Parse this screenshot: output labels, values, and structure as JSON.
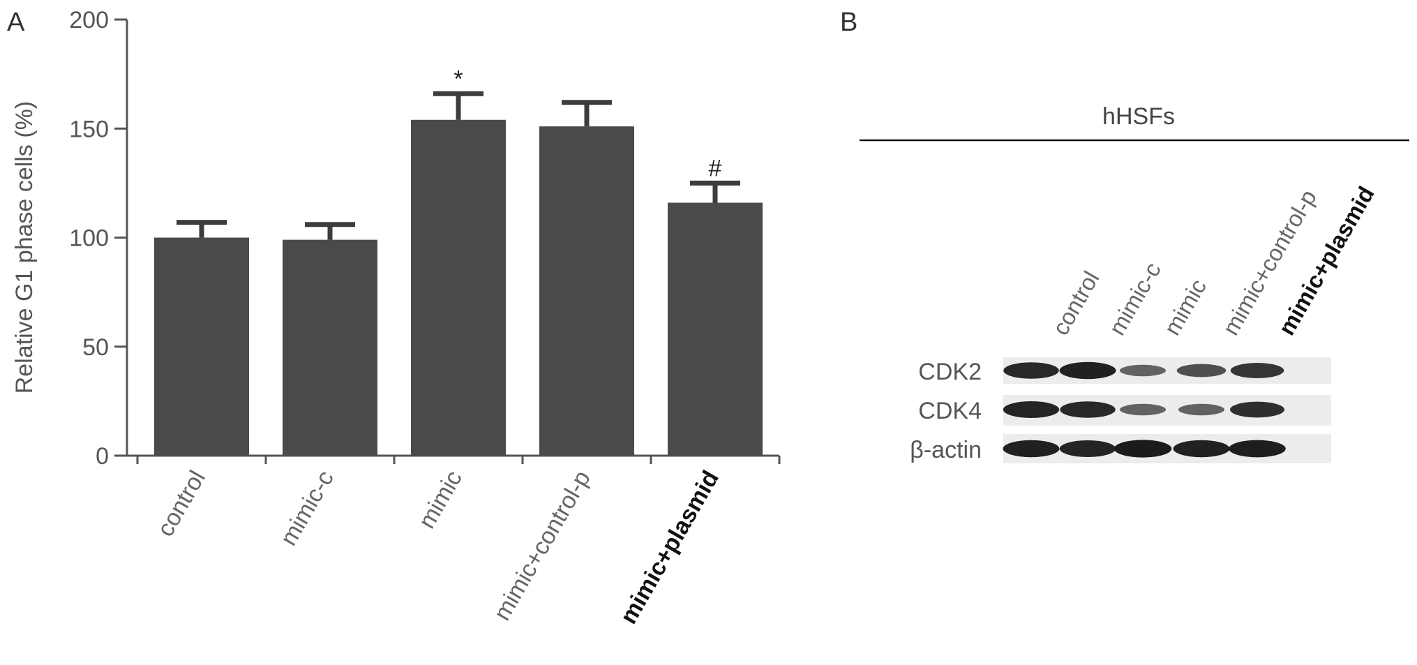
{
  "panel_a": {
    "label": "A",
    "chart_data": {
      "type": "bar",
      "categories": [
        "control",
        "mimic-c",
        "mimic",
        "mimic+control-p",
        "mimic+plasmid"
      ],
      "values": [
        100,
        99,
        154,
        151,
        116
      ],
      "errors": [
        7,
        7,
        12,
        11,
        9
      ],
      "annotations": [
        "",
        "",
        "*",
        "",
        "#"
      ],
      "title": "",
      "xlabel": "",
      "ylabel": "Relative G1 phase cells (%)",
      "ylim": [
        0,
        200
      ],
      "yticks": [
        0,
        50,
        100,
        150,
        200
      ],
      "grid": false,
      "legend": "none",
      "bar_color": "#4a4a4a",
      "bold_categories": [
        "mimic+plasmid"
      ]
    }
  },
  "panel_b": {
    "label": "B",
    "cell_line": "hHSFs",
    "lanes": [
      "control",
      "mimic-c",
      "mimic",
      "mimic+control-p",
      "mimic+plasmid"
    ],
    "bold_lanes": [
      "mimic+plasmid"
    ],
    "blots": [
      {
        "protein": "CDK2",
        "intensity": [
          0.85,
          0.9,
          0.4,
          0.55,
          0.75
        ]
      },
      {
        "protein": "CDK4",
        "intensity": [
          0.88,
          0.85,
          0.4,
          0.4,
          0.8
        ]
      },
      {
        "protein": "β-actin",
        "intensity": [
          0.9,
          0.88,
          0.95,
          0.9,
          0.92
        ]
      }
    ]
  }
}
